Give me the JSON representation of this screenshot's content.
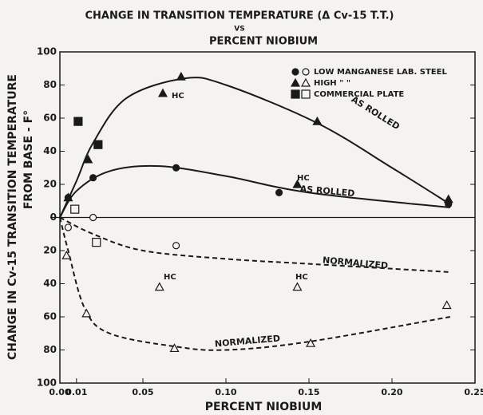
{
  "chart_data": {
    "type": "scatter",
    "title": "CHANGE IN TRANSITION TEMPERATURE (Δ Cv-15 T.T.)",
    "subtitle": "VS",
    "title2": "PERCENT NIOBIUM",
    "xlabel": "PERCENT NIOBIUM",
    "ylabel": "CHANGE IN Cv-15 TRANSITION TEMPERATURE",
    "ylabel2": "FROM BASE - F°",
    "xlim": [
      0,
      0.25
    ],
    "ylim": [
      -100,
      100
    ],
    "xticks": [
      {
        "value": 0,
        "label": "0.00"
      },
      0.01,
      0.05,
      {
        "value": 0.1,
        "label": "0.10"
      },
      0.15,
      {
        "value": 0.2,
        "label": "0.20"
      },
      0.25
    ],
    "yticks": [
      {
        "value": -100,
        "label": "100"
      },
      {
        "value": -80,
        "label": "80"
      },
      {
        "value": -60,
        "label": "60"
      },
      {
        "value": -40,
        "label": "40"
      },
      {
        "value": -20,
        "label": "20"
      },
      0,
      20,
      40,
      60,
      80,
      100
    ],
    "series": [
      {
        "name": "LOW MANGANESE LAB. STEEL",
        "color": "#1a1a1a",
        "marker": "circle",
        "as_rolled": {
          "x": [
            0.005,
            0.02,
            0.07,
            0.132,
            0.234
          ],
          "y": [
            12,
            24,
            30,
            15,
            8
          ]
        },
        "normalized": {
          "x": [
            0.005,
            0.02,
            0.07
          ],
          "y": [
            -6,
            0,
            -17
          ]
        }
      },
      {
        "name": "HIGH    \"        \"",
        "color": "#1a1a1a",
        "marker": "triangle",
        "as_rolled": {
          "x": [
            0.005,
            0.017,
            0.062,
            0.073,
            0.143,
            0.155,
            0.234
          ],
          "y": [
            12,
            35,
            75,
            85,
            20,
            58,
            11
          ]
        },
        "normalized": {
          "x": [
            0.004,
            0.016,
            0.06,
            0.069,
            0.143,
            0.151,
            0.233
          ],
          "y": [
            -23,
            -58,
            -42,
            -79,
            -42,
            -76,
            -53
          ]
        }
      },
      {
        "name": "COMMERCIAL PLATE",
        "color": "#1a1a1a",
        "marker": "square",
        "as_rolled": {
          "x": [
            0.011,
            0.023
          ],
          "y": [
            58,
            44
          ]
        },
        "normalized": {
          "x": [
            0.009,
            0.022
          ],
          "y": [
            5,
            -15
          ]
        }
      }
    ],
    "curves": [
      {
        "label": "AS ROLLED",
        "dashed": false,
        "x": [
          0,
          0.01,
          0.02,
          0.04,
          0.075,
          0.1,
          0.155,
          0.2,
          0.235
        ],
        "y": [
          0,
          22,
          45,
          72,
          84,
          80,
          57,
          30,
          8
        ]
      },
      {
        "label": "AS ROLLED",
        "dashed": false,
        "x": [
          0,
          0.01,
          0.03,
          0.06,
          0.1,
          0.15,
          0.235
        ],
        "y": [
          0,
          16,
          28,
          31,
          25,
          15,
          6
        ]
      },
      {
        "label": "NORMALIZED",
        "dashed": true,
        "x": [
          0,
          0.02,
          0.05,
          0.1,
          0.15,
          0.235
        ],
        "y": [
          0,
          -10,
          -20,
          -25,
          -28,
          -33
        ]
      },
      {
        "label": "NORMALIZED",
        "dashed": true,
        "x": [
          0,
          0.005,
          0.015,
          0.03,
          0.07,
          0.1,
          0.15,
          0.235
        ],
        "y": [
          0,
          -20,
          -55,
          -70,
          -78,
          -80,
          -75,
          -60
        ]
      }
    ],
    "annotations": [
      "HC",
      "HC",
      "HC",
      "HC"
    ]
  }
}
